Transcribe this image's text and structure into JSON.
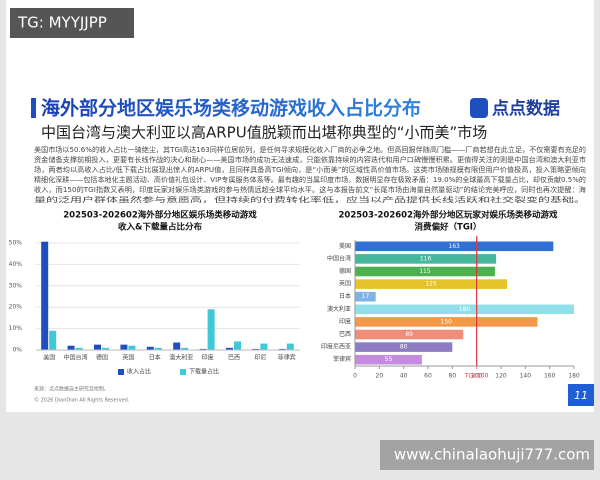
{
  "watermark": "TG: MYYJJPP",
  "header": {
    "title": "海外部分地区娱乐场类移动游戏收入占比分布",
    "subtitle": "中国台湾与澳大利亚以高ARPU值脱颖而出堪称典型的“小而美”市场",
    "logo": "点点数据"
  },
  "paragraph": [
    "美国市场以50.6%的收入占比一骑绝尘，其TGI高达163同样位居前列，是任何寻求规模化收入厂商的必争之地。但高回报伴随高门槛——厂商若想在此立足，不仅需要有充足的",
    "资金储备支撑前期投入，更要有长线作战的决心和耐心——美国市场的成功无法速成，只能依靠持续的内容迭代和用户口碑慢慢积累。更值得关注的则是中国台湾和澳大利亚市",
    "场，两者均以高收入占比/低下载占比展现出惊人的ARPU值，且同样具备高TGI倾向，是“小而美”的区域性高价值市场。这类市场随规模有限但用户价值极高，投入策略更倾向",
    "精细化深耕——包括本地化主题活动、高价值礼包设计、VIP专属服务体系等。最有趣的当属印度市场，数据明显存在极致矛盾：19.0%的全球最高下载量占比，却仅贡献0.5%的",
    "收入，而150的TGI指数又表明，印度玩家对娱乐场类游戏的参与热情远超全球平均水平。这与本报告前文“长尾市场由海量自然量驱动”的结论完美呼应，同时也再次提醒：海",
    "量的泛用户群体虽然参与意愿高，但持续的付费转化率低，应当以产品提供长线活跃和社交裂变的基础。"
  ],
  "footer": {
    "source": "来源：点点数据自主研究及绘制。",
    "copyright": "© 2026 DianDian All Rights Reserved.",
    "page": "11",
    "site": "www.chinalaohuji777.com"
  },
  "chart_data": [
    {
      "type": "bar",
      "title": [
        "202503-202602海外部分地区娱乐场类移动游戏",
        "收入&下载量占比分布"
      ],
      "categories": [
        "美国",
        "中国台湾",
        "德国",
        "英国",
        "日本",
        "澳大利亚",
        "印度",
        "巴西",
        "印尼",
        "菲律宾"
      ],
      "series": [
        {
          "name": "收入占比",
          "color": "#1f4fbf",
          "values": [
            50.6,
            2,
            2.5,
            2.5,
            1.5,
            3.5,
            0.5,
            1,
            0.5,
            0.5
          ]
        },
        {
          "name": "下载量占比",
          "color": "#3ec8d8",
          "values": [
            9,
            1,
            1,
            2,
            1,
            1,
            19,
            4,
            3,
            3
          ]
        }
      ],
      "ylim": [
        0,
        50
      ],
      "yticks": [
        {
          "value": 0,
          "label": "0%"
        },
        {
          "value": 10,
          "label": "10%"
        },
        {
          "value": 20,
          "label": "20%"
        },
        {
          "value": 30,
          "label": "30%"
        },
        {
          "value": 40,
          "label": "40%"
        },
        {
          "value": 50,
          "label": "50%"
        }
      ],
      "legend": "bottom"
    },
    {
      "type": "barh",
      "title": [
        "202503-202602海外部分地区玩家对娱乐场类移动游戏",
        "消费偏好（TGI）"
      ],
      "categories": [
        "美国",
        "中国台湾",
        "德国",
        "英国",
        "日本",
        "澳大利亚",
        "印度",
        "巴西",
        "印度尼西亚",
        "菲律宾"
      ],
      "values": [
        163,
        116,
        115,
        125,
        17,
        180,
        150,
        89,
        80,
        55
      ],
      "colors": [
        "#2f6fd6",
        "#45b79a",
        "#4caf50",
        "#e6c229",
        "#7fb3e6",
        "#8fe0e8",
        "#f2994a",
        "#f08c7a",
        "#8e7cc3",
        "#c58be0"
      ],
      "xlim": [
        0,
        180
      ],
      "xticks": [
        0,
        20,
        40,
        60,
        80,
        100,
        120,
        140,
        160,
        180
      ],
      "reference": {
        "value": 100,
        "label": "TGI:100",
        "color": "#d9363e"
      }
    }
  ]
}
